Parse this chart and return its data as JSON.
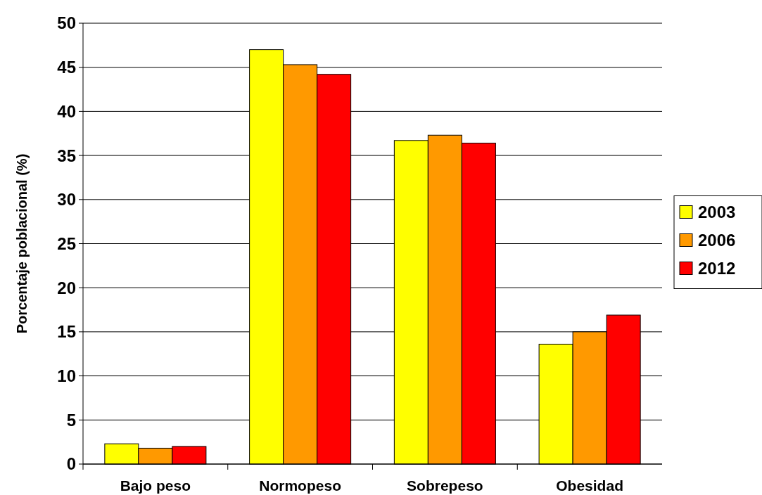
{
  "chart_data": {
    "type": "bar",
    "ylabel": "Porcentaje poblacional (%)",
    "categories": [
      "Bajo peso",
      "Normopeso",
      "Sobrepeso",
      "Obesidad"
    ],
    "series": [
      {
        "name": "2003",
        "color": "#ffff00",
        "values": [
          2.3,
          47.0,
          36.7,
          13.6
        ]
      },
      {
        "name": "2006",
        "color": "#ff9900",
        "values": [
          1.8,
          45.3,
          37.3,
          15.0
        ]
      },
      {
        "name": "2012",
        "color": "#ff0000",
        "values": [
          2.0,
          44.2,
          36.4,
          16.9
        ]
      }
    ],
    "ylim": [
      0,
      50
    ],
    "yticks": [
      0,
      5,
      10,
      15,
      20,
      25,
      30,
      35,
      40,
      45,
      50
    ],
    "grid": "y",
    "legend": "right"
  }
}
